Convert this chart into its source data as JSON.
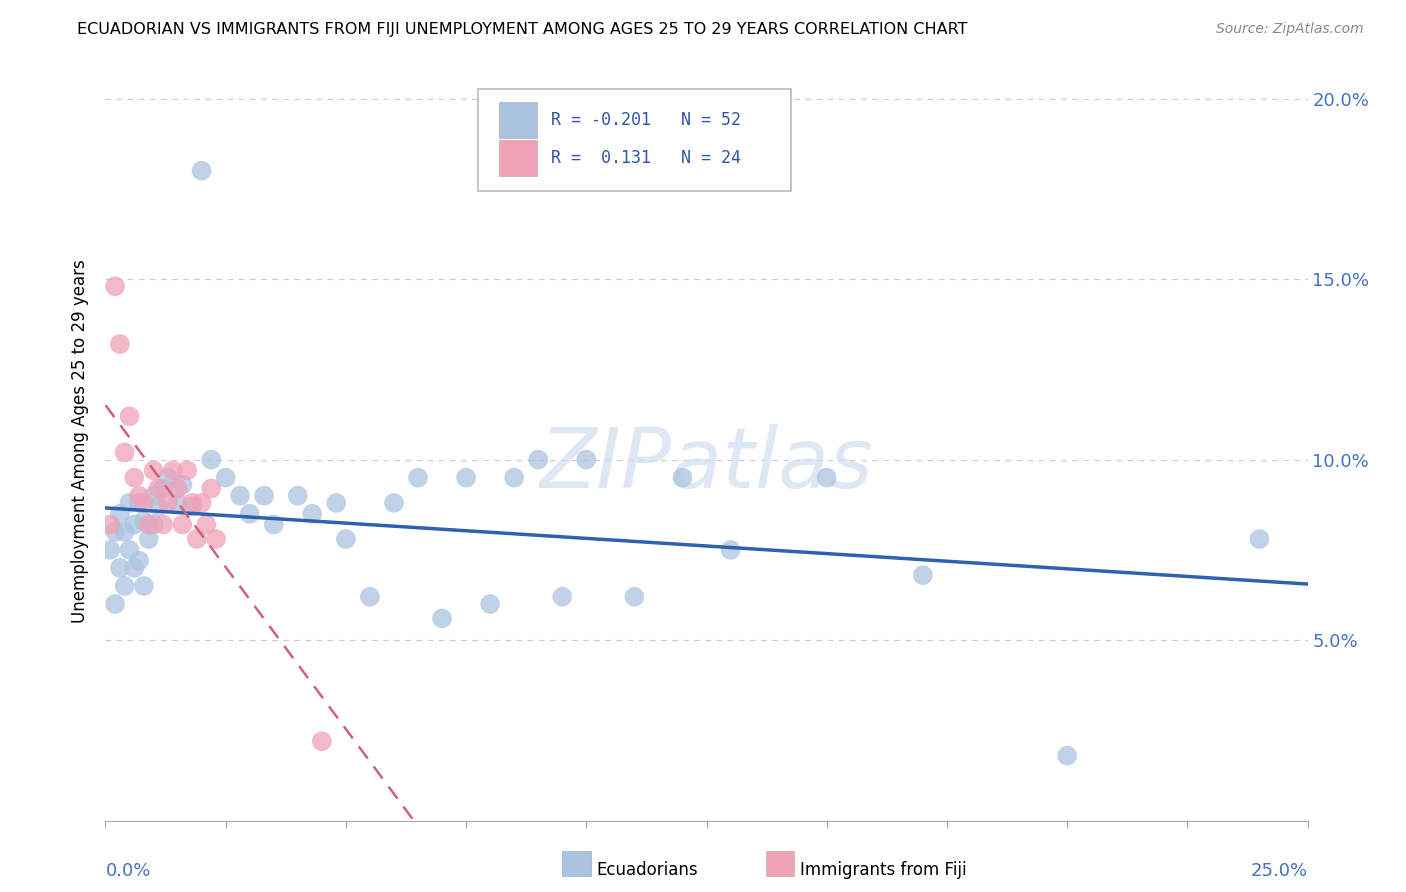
{
  "title": "ECUADORIAN VS IMMIGRANTS FROM FIJI UNEMPLOYMENT AMONG AGES 25 TO 29 YEARS CORRELATION CHART",
  "source": "Source: ZipAtlas.com",
  "ylabel": "Unemployment Among Ages 25 to 29 years",
  "xmin": 0.0,
  "xmax": 0.25,
  "ymin": 0.0,
  "ymax": 0.21,
  "yticks": [
    0.05,
    0.1,
    0.15,
    0.2
  ],
  "ytick_labels": [
    "5.0%",
    "10.0%",
    "15.0%",
    "20.0%"
  ],
  "ecuadorians": {
    "R": -0.201,
    "N": 52,
    "color": "#aac4e0",
    "line_color": "#3060b0",
    "label": "Ecuadorians",
    "x": [
      0.001,
      0.002,
      0.002,
      0.003,
      0.003,
      0.004,
      0.004,
      0.005,
      0.005,
      0.006,
      0.006,
      0.007,
      0.007,
      0.008,
      0.008,
      0.009,
      0.01,
      0.01,
      0.011,
      0.012,
      0.013,
      0.015,
      0.016,
      0.018,
      0.02,
      0.022,
      0.025,
      0.028,
      0.03,
      0.033,
      0.035,
      0.04,
      0.043,
      0.048,
      0.05,
      0.055,
      0.06,
      0.065,
      0.07,
      0.075,
      0.08,
      0.085,
      0.09,
      0.095,
      0.1,
      0.11,
      0.12,
      0.13,
      0.15,
      0.17,
      0.2,
      0.24
    ],
    "y": [
      0.075,
      0.06,
      0.08,
      0.07,
      0.085,
      0.065,
      0.08,
      0.075,
      0.088,
      0.07,
      0.082,
      0.072,
      0.088,
      0.065,
      0.083,
      0.078,
      0.09,
      0.082,
      0.087,
      0.092,
      0.095,
      0.088,
      0.093,
      0.087,
      0.18,
      0.1,
      0.095,
      0.09,
      0.085,
      0.09,
      0.082,
      0.09,
      0.085,
      0.088,
      0.078,
      0.062,
      0.088,
      0.095,
      0.056,
      0.095,
      0.06,
      0.095,
      0.1,
      0.062,
      0.1,
      0.062,
      0.095,
      0.075,
      0.095,
      0.068,
      0.018,
      0.078
    ]
  },
  "fiji": {
    "R": 0.131,
    "N": 24,
    "color": "#f0a0b8",
    "line_color": "#d06080",
    "label": "Immigrants from Fiji",
    "x": [
      0.001,
      0.002,
      0.003,
      0.004,
      0.005,
      0.006,
      0.007,
      0.008,
      0.009,
      0.01,
      0.011,
      0.012,
      0.013,
      0.014,
      0.015,
      0.016,
      0.017,
      0.018,
      0.019,
      0.02,
      0.021,
      0.022,
      0.023,
      0.045
    ],
    "y": [
      0.082,
      0.148,
      0.132,
      0.102,
      0.112,
      0.095,
      0.09,
      0.088,
      0.082,
      0.097,
      0.092,
      0.082,
      0.088,
      0.097,
      0.092,
      0.082,
      0.097,
      0.088,
      0.078,
      0.088,
      0.082,
      0.092,
      0.078,
      0.022
    ]
  },
  "watermark": "ZIPatlas",
  "background_color": "#ffffff",
  "grid_color": "#cccccc"
}
